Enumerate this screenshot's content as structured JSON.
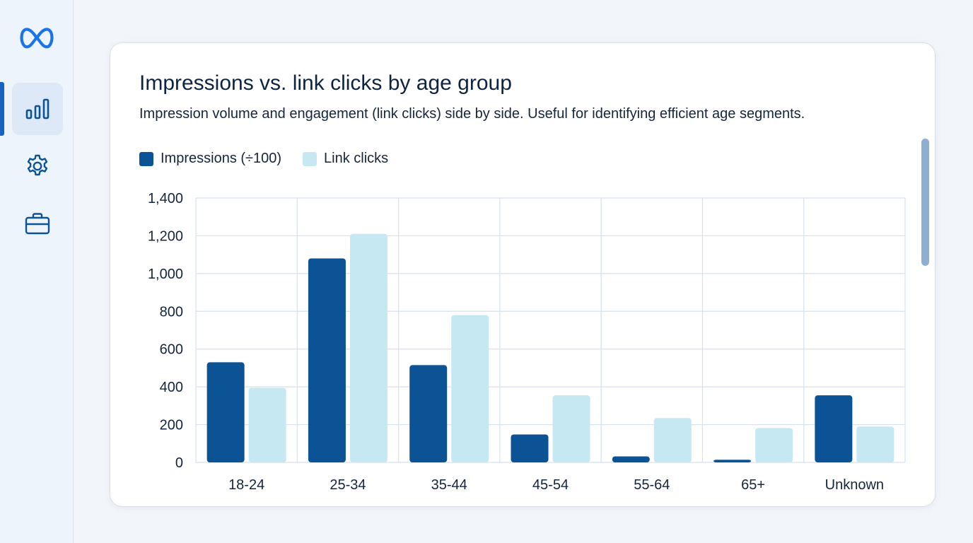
{
  "sidebar": {
    "logo_icon": "meta-infinity-icon",
    "items": [
      {
        "icon": "bar-chart-icon",
        "active": true
      },
      {
        "icon": "gear-icon",
        "active": false
      },
      {
        "icon": "briefcase-icon",
        "active": false
      }
    ]
  },
  "colors": {
    "impressions": "#0b5394",
    "link_clicks": "#c6e8f3",
    "grid": "#d7e1ec",
    "accent": "#1565c0"
  },
  "chart_data": {
    "type": "bar",
    "title": "Impressions vs. link clicks by age group",
    "subtitle": "Impression volume and engagement (link clicks) side by side. Useful for identifying efficient age segments.",
    "categories": [
      "18-24",
      "25-34",
      "35-44",
      "45-54",
      "55-64",
      "65+",
      "Unknown"
    ],
    "series": [
      {
        "name": "Impressions (÷100)",
        "values": [
          530,
          1080,
          515,
          148,
          32,
          14,
          355
        ]
      },
      {
        "name": "Link clicks",
        "values": [
          395,
          1210,
          780,
          355,
          235,
          182,
          190
        ]
      }
    ],
    "ylim": [
      0,
      1400
    ],
    "yticks": [
      0,
      200,
      400,
      600,
      800,
      1000,
      1200,
      1400
    ],
    "ytick_labels": [
      "0",
      "200",
      "400",
      "600",
      "800",
      "1,000",
      "1,200",
      "1,400"
    ],
    "xlabel": "",
    "ylabel": "",
    "grid": true,
    "legend": "top-left"
  }
}
